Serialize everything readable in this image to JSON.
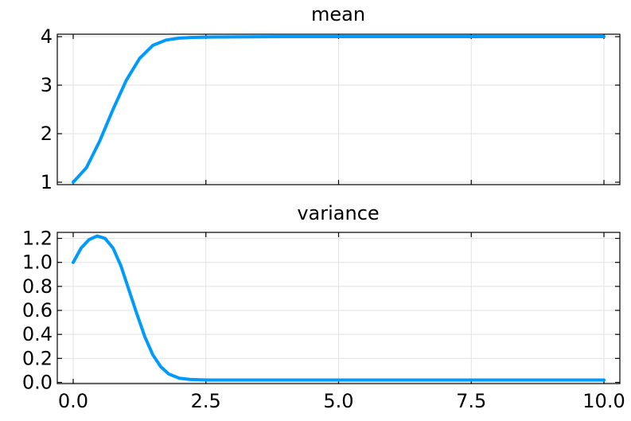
{
  "chart_data": [
    {
      "type": "line",
      "title": "mean",
      "xlabel": "",
      "ylabel": "",
      "xlim": [
        0,
        10
      ],
      "ylim": [
        0.95,
        4.05
      ],
      "y_ticks": [
        1,
        2,
        3,
        4
      ],
      "y_tick_labels": [
        "1",
        "2",
        "3",
        "4"
      ],
      "x_ticks": [
        0,
        2.5,
        5,
        7.5,
        10
      ],
      "x_tick_labels_visible": false,
      "grid": true,
      "legend": "none",
      "series": [
        {
          "color": "#009AFA",
          "x": [
            0,
            0.25,
            0.5,
            0.75,
            1.0,
            1.25,
            1.5,
            1.75,
            2.0,
            2.25,
            2.5,
            3.0,
            4.0,
            5.0,
            6.0,
            7.0,
            8.0,
            9.0,
            10.0
          ],
          "y": [
            1.0,
            1.3,
            1.85,
            2.5,
            3.1,
            3.55,
            3.82,
            3.93,
            3.97,
            3.985,
            3.99,
            3.995,
            4.0,
            4.0,
            4.0,
            4.0,
            4.0,
            4.0,
            4.0
          ]
        }
      ]
    },
    {
      "type": "line",
      "title": "variance",
      "xlabel": "",
      "ylabel": "",
      "xlim": [
        0,
        10
      ],
      "ylim": [
        -0.01,
        1.25
      ],
      "y_ticks": [
        0.0,
        0.2,
        0.4,
        0.6,
        0.8,
        1.0,
        1.2
      ],
      "y_tick_labels": [
        "0.0",
        "0.2",
        "0.4",
        "0.6",
        "0.8",
        "1.0",
        "1.2"
      ],
      "x_ticks": [
        0,
        2.5,
        5,
        7.5,
        10
      ],
      "x_tick_labels": [
        "0.0",
        "2.5",
        "5.0",
        "7.5",
        "10.0"
      ],
      "grid": true,
      "legend": "none",
      "series": [
        {
          "color": "#009AFA",
          "x": [
            0,
            0.15,
            0.3,
            0.45,
            0.6,
            0.75,
            0.9,
            1.05,
            1.2,
            1.35,
            1.5,
            1.65,
            1.8,
            2.0,
            2.2,
            2.5,
            3.0,
            4.0,
            5.0,
            6.0,
            7.0,
            8.0,
            9.0,
            10.0
          ],
          "y": [
            1.0,
            1.12,
            1.19,
            1.22,
            1.2,
            1.12,
            0.97,
            0.77,
            0.57,
            0.38,
            0.23,
            0.13,
            0.07,
            0.035,
            0.025,
            0.02,
            0.02,
            0.02,
            0.02,
            0.02,
            0.02,
            0.02,
            0.02,
            0.02
          ]
        }
      ]
    }
  ]
}
